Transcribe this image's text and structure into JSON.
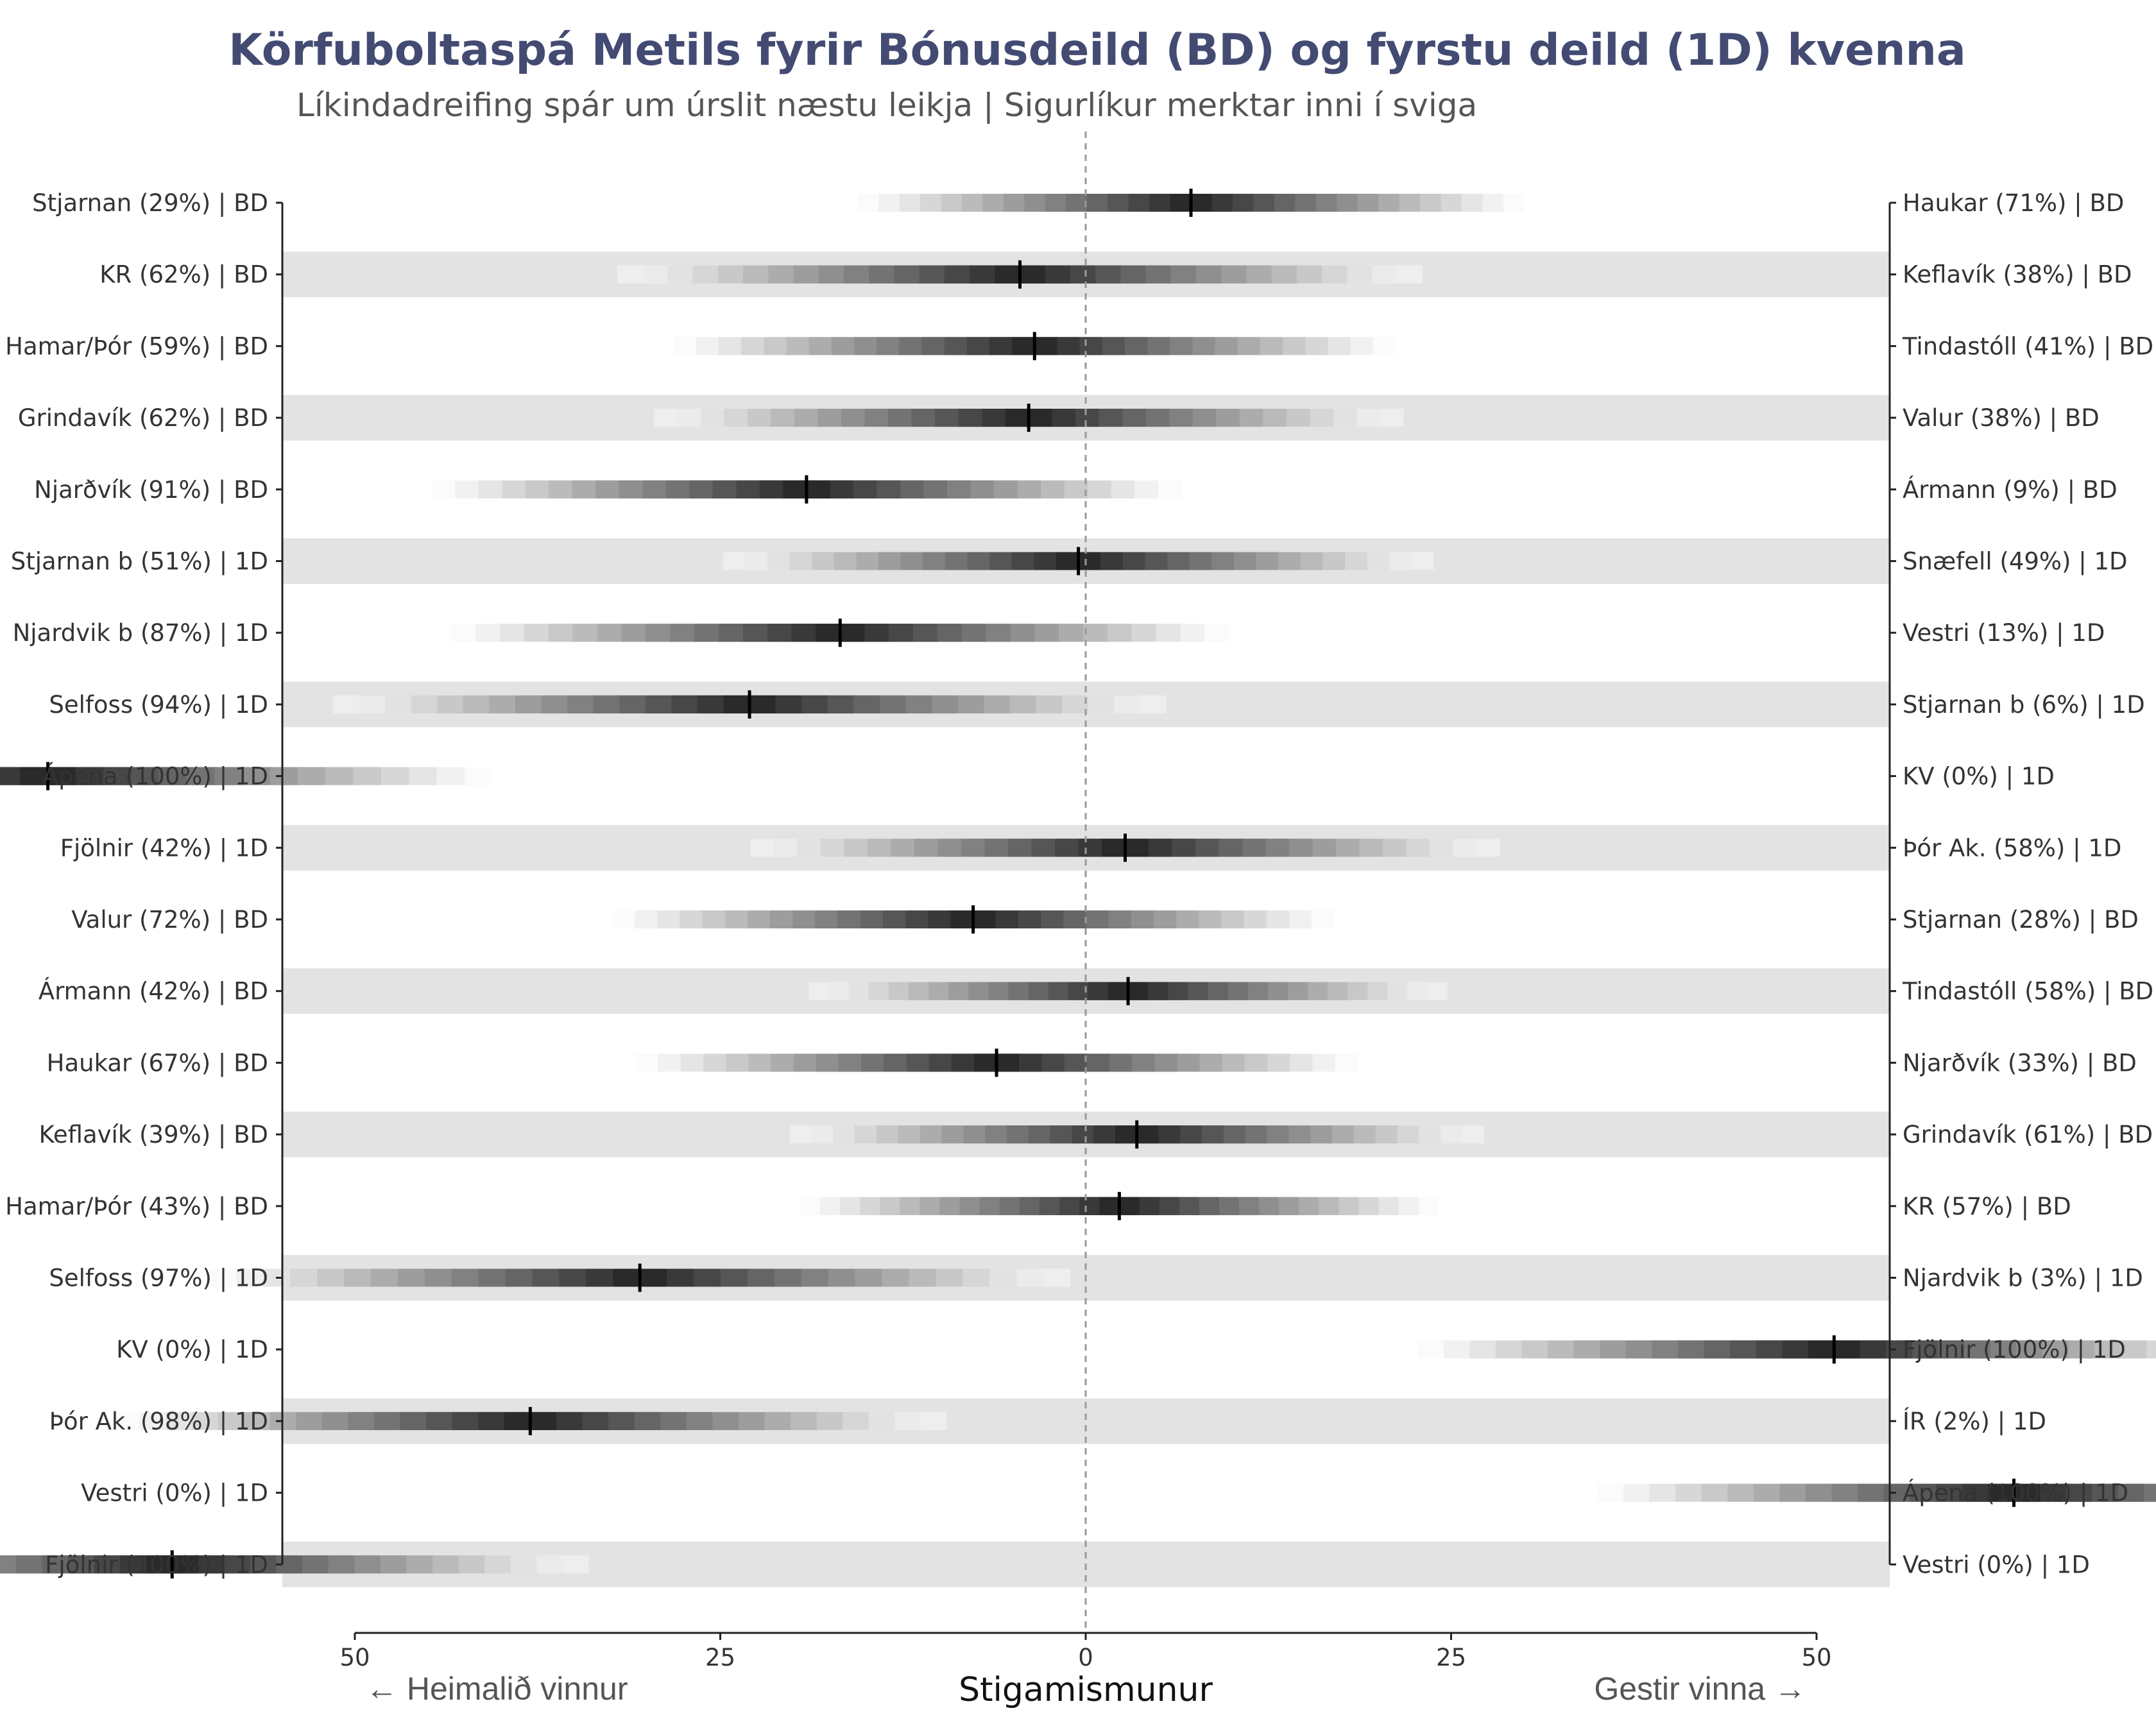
{
  "chart_data": {
    "type": "interval",
    "title": "Körfuboltaspá Metils fyrir Bónusdeild (BD) og fyrstu deild (1D) kvenna",
    "subtitle": "Líkindadreifing spár um úrslit næstu leikja | Sigurlíkur merktar inni í sviga",
    "xlabel": "Stigamismunur",
    "left_direction_label": "← Heimalið vinnur",
    "right_direction_label": "Gestir vinna →",
    "xlim": [
      -50,
      50
    ],
    "x_ticks": [
      -50,
      -25,
      0,
      25,
      50
    ],
    "x_tick_labels": [
      "50",
      "25",
      "0",
      "25",
      "50"
    ],
    "games": [
      {
        "home": "Stjarnan (29%) | BD",
        "away": "Haukar (71%) | BD",
        "center": 7.2,
        "spread": 12.0
      },
      {
        "home": "KR (62%) | BD",
        "away": "Keflavík (38%) | BD",
        "center": -4.5,
        "spread": 14.5
      },
      {
        "home": "Hamar/Þór (59%) | BD",
        "away": "Tindastóll (41%) | BD",
        "center": -3.5,
        "spread": 13.0
      },
      {
        "home": "Grindavík (62%) | BD",
        "away": "Valur (38%) | BD",
        "center": -3.9,
        "spread": 13.5
      },
      {
        "home": "Njarðvík (91%) | BD",
        "away": "Ármann (9%) | BD",
        "center": -19.1,
        "spread": 13.5
      },
      {
        "home": "Stjarnan b (51%) | 1D",
        "away": "Snæfell (49%) | 1D",
        "center": -0.5,
        "spread": 12.8
      },
      {
        "home": "Njardvik b (87%) | 1D",
        "away": "Vestri (13%) | 1D",
        "center": -16.8,
        "spread": 14.0
      },
      {
        "home": "Selfoss (94%) | 1D",
        "away": "Stjarnan b (6%) | 1D",
        "center": -23.0,
        "spread": 15.0
      },
      {
        "home": "Ápena (100%) | 1D",
        "away": "KV (0%) | 1D",
        "center": -71.0,
        "spread": 16.0
      },
      {
        "home": "Fjölnir (42%) | 1D",
        "away": "Þór Ak. (58%) | 1D",
        "center": 2.7,
        "spread": 13.5
      },
      {
        "home": "Valur (72%) | BD",
        "away": "Stjarnan (28%) | BD",
        "center": -7.7,
        "spread": 13.0
      },
      {
        "home": "Ármann (42%) | BD",
        "away": "Tindastóll (58%) | BD",
        "center": 2.9,
        "spread": 11.5
      },
      {
        "home": "Haukar (67%) | BD",
        "away": "Njarðvík (33%) | BD",
        "center": -6.1,
        "spread": 13.0
      },
      {
        "home": "Keflavík (39%) | BD",
        "away": "Grindavík (61%) | BD",
        "center": 3.5,
        "spread": 12.5
      },
      {
        "home": "Hamar/Þór (43%) | BD",
        "away": "KR (57%) | BD",
        "center": 2.3,
        "spread": 11.5
      },
      {
        "home": "Selfoss (97%) | 1D",
        "away": "Njardvik b (3%) | 1D",
        "center": -30.5,
        "spread": 15.5
      },
      {
        "home": "KV (0%) | 1D",
        "away": "Fjölnir (100%) | 1D",
        "center": 51.2,
        "spread": 15.0
      },
      {
        "home": "Þór Ak. (98%) | 1D",
        "away": "ÍR (2%) | 1D",
        "center": -38.0,
        "spread": 15.0
      },
      {
        "home": "Vestri (0%) | 1D",
        "away": "Ápena (100%) | 1D",
        "center": 63.5,
        "spread": 15.0
      },
      {
        "home": "Fjölnir (100%) | 1D",
        "away": "Vestri (0%) | 1D",
        "center": -62.5,
        "spread": 15.0
      }
    ]
  },
  "colors": {
    "title": "#434b73",
    "band": "#e3e3e3",
    "zero_line": "#999999",
    "median": "#000000"
  }
}
